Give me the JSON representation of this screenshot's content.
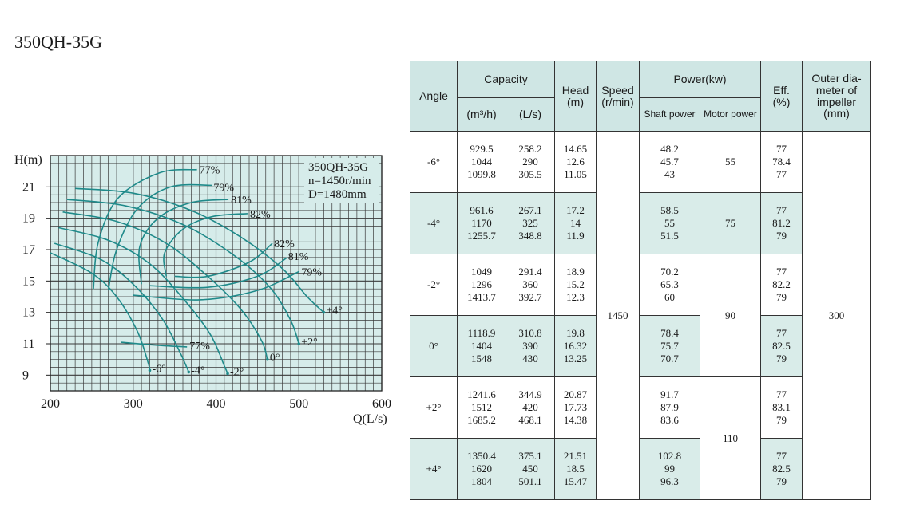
{
  "page": {
    "model_title": "350QH-35G"
  },
  "chart_data": {
    "type": "line",
    "info": [
      "350QH-35G",
      "n=1450r/min",
      "D=1480mm"
    ],
    "xlabel": "Q(L/s)",
    "ylabel": "H(m)",
    "xlim": [
      200,
      600
    ],
    "ylim": [
      8,
      23
    ],
    "x_ticks": [
      200,
      300,
      400,
      500,
      600
    ],
    "y_ticks": [
      9,
      11,
      13,
      15,
      17,
      19,
      21
    ],
    "grid": true,
    "head_curves": [
      {
        "label": "+4°",
        "points": [
          [
            230,
            20.9
          ],
          [
            300,
            20.6
          ],
          [
            370,
            19.5
          ],
          [
            430,
            17.8
          ],
          [
            480,
            15.8
          ],
          [
            510,
            14.0
          ],
          [
            530,
            13.0
          ]
        ]
      },
      {
        "label": "+2°",
        "points": [
          [
            220,
            20.2
          ],
          [
            290,
            19.8
          ],
          [
            360,
            18.6
          ],
          [
            420,
            16.7
          ],
          [
            465,
            14.6
          ],
          [
            490,
            12.5
          ],
          [
            500,
            11.0
          ]
        ]
      },
      {
        "label": "0°",
        "points": [
          [
            215,
            19.4
          ],
          [
            280,
            18.8
          ],
          [
            340,
            17.4
          ],
          [
            390,
            15.3
          ],
          [
            430,
            13.2
          ],
          [
            455,
            11.2
          ],
          [
            462,
            10.0
          ]
        ]
      },
      {
        "label": "-2°",
        "points": [
          [
            210,
            18.4
          ],
          [
            270,
            17.6
          ],
          [
            320,
            16.1
          ],
          [
            360,
            13.9
          ],
          [
            393,
            11.6
          ],
          [
            410,
            9.6
          ],
          [
            414,
            9.1
          ]
        ]
      },
      {
        "label": "-4°",
        "points": [
          [
            205,
            17.4
          ],
          [
            260,
            16.4
          ],
          [
            300,
            14.8
          ],
          [
            335,
            12.6
          ],
          [
            357,
            10.4
          ],
          [
            367,
            9.2
          ]
        ]
      },
      {
        "label": "-6°",
        "points": [
          [
            200,
            16.8
          ],
          [
            250,
            15.5
          ],
          [
            280,
            14.0
          ],
          [
            305,
            11.8
          ],
          [
            318,
            9.8
          ],
          [
            320,
            9.3
          ]
        ]
      }
    ],
    "efficiency_curves": [
      {
        "label": "77%",
        "points": [
          [
            252,
            14.5
          ],
          [
            258,
            17.5
          ],
          [
            282,
            20.3
          ],
          [
            332,
            21.9
          ],
          [
            377,
            22.1
          ]
        ],
        "label_q": 380,
        "label_h": 22.1
      },
      {
        "label": "79%",
        "points": [
          [
            270,
            14.4
          ],
          [
            280,
            17.0
          ],
          [
            305,
            19.6
          ],
          [
            345,
            21.0
          ],
          [
            395,
            21.1
          ]
        ],
        "label_q": 397,
        "label_h": 21.0
      },
      {
        "label": "81%",
        "points": [
          [
            310,
            14.8
          ],
          [
            308,
            17.2
          ],
          [
            330,
            19.0
          ],
          [
            370,
            20.0
          ],
          [
            415,
            20.2
          ]
        ],
        "label_q": 418,
        "label_h": 20.2
      },
      {
        "label": "82%",
        "points": [
          [
            340,
            15.3
          ],
          [
            338,
            16.8
          ],
          [
            360,
            18.3
          ],
          [
            395,
            19.1
          ],
          [
            438,
            19.3
          ]
        ],
        "label_q": 441,
        "label_h": 19.3
      },
      {
        "label": "82%",
        "points": [
          [
            350,
            15.3
          ],
          [
            390,
            15.3
          ],
          [
            440,
            16.2
          ],
          [
            468,
            17.4
          ]
        ],
        "label_q": 470,
        "label_h": 17.4
      },
      {
        "label": "81%",
        "points": [
          [
            320,
            14.7
          ],
          [
            390,
            14.6
          ],
          [
            450,
            15.3
          ],
          [
            486,
            16.5
          ]
        ],
        "label_q": 487,
        "label_h": 16.6
      },
      {
        "label": "79%",
        "points": [
          [
            300,
            14.1
          ],
          [
            380,
            13.8
          ],
          [
            450,
            14.4
          ],
          [
            500,
            15.6
          ]
        ],
        "label_q": 503,
        "label_h": 15.6
      },
      {
        "label": "77%",
        "points": [
          [
            285,
            11.1
          ],
          [
            330,
            10.9
          ],
          [
            365,
            10.8
          ]
        ],
        "label_q": 368,
        "label_h": 10.9
      }
    ]
  },
  "table": {
    "headers": {
      "angle": "Angle",
      "capacity": "Capacity",
      "cap_m3h": "(m³/h)",
      "cap_ls": "(L/s)",
      "head": "Head",
      "head_unit": "(m)",
      "speed": "Speed",
      "speed_unit": "(r/min)",
      "power": "Power(kw)",
      "shaft": "Shaft power",
      "motor": "Motor power",
      "eff": "Eff.",
      "eff_unit": "(%)",
      "diameter": "Outer dia-meter of impeller (mm)"
    },
    "rows": [
      {
        "angle": "-6°",
        "m3h": [
          "929.5",
          "1044",
          "1099.8"
        ],
        "ls": [
          "258.2",
          "290",
          "305.5"
        ],
        "head": [
          "14.65",
          "12.6",
          "11.05"
        ],
        "shaft": [
          "48.2",
          "45.7",
          "43"
        ],
        "eff": [
          "77",
          "78.4",
          "77"
        ]
      },
      {
        "angle": "-4°",
        "m3h": [
          "961.6",
          "1170",
          "1255.7"
        ],
        "ls": [
          "267.1",
          "325",
          "348.8"
        ],
        "head": [
          "17.2",
          "14",
          "11.9"
        ],
        "shaft": [
          "58.5",
          "55",
          "51.5"
        ],
        "eff": [
          "77",
          "81.2",
          "79"
        ]
      },
      {
        "angle": "-2°",
        "m3h": [
          "1049",
          "1296",
          "1413.7"
        ],
        "ls": [
          "291.4",
          "360",
          "392.7"
        ],
        "head": [
          "18.9",
          "15.2",
          "12.3"
        ],
        "shaft": [
          "70.2",
          "65.3",
          "60"
        ],
        "eff": [
          "77",
          "82.2",
          "79"
        ]
      },
      {
        "angle": "0°",
        "m3h": [
          "1118.9",
          "1404",
          "1548"
        ],
        "ls": [
          "310.8",
          "390",
          "430"
        ],
        "head": [
          "19.8",
          "16.32",
          "13.25"
        ],
        "shaft": [
          "78.4",
          "75.7",
          "70.7"
        ],
        "eff": [
          "77",
          "82.5",
          "79"
        ]
      },
      {
        "angle": "+2°",
        "m3h": [
          "1241.6",
          "1512",
          "1685.2"
        ],
        "ls": [
          "344.9",
          "420",
          "468.1"
        ],
        "head": [
          "20.87",
          "17.73",
          "14.38"
        ],
        "shaft": [
          "91.7",
          "87.9",
          "83.6"
        ],
        "eff": [
          "77",
          "83.1",
          "79"
        ]
      },
      {
        "angle": "+4°",
        "m3h": [
          "1350.4",
          "1620",
          "1804"
        ],
        "ls": [
          "375.1",
          "450",
          "501.1"
        ],
        "head": [
          "21.51",
          "18.5",
          "15.47"
        ],
        "shaft": [
          "102.8",
          "99",
          "96.3"
        ],
        "eff": [
          "77",
          "82.5",
          "79"
        ]
      }
    ],
    "speed": "1450",
    "motor_power": [
      "55",
      "75",
      "90",
      "110"
    ],
    "diameter": "300"
  }
}
